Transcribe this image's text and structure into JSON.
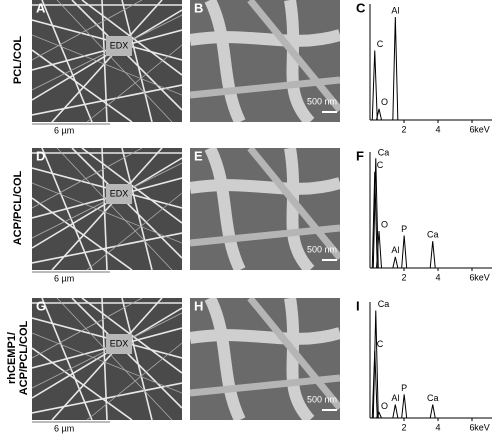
{
  "rows": [
    {
      "label": [
        "PCL/COL"
      ],
      "low_mag": {
        "letter": "A",
        "marker": "EDX",
        "scale": "6 µm"
      },
      "high_mag": {
        "letter": "B",
        "scale": "500 nm"
      },
      "spectrum": {
        "letter": "C",
        "xticks": [
          2,
          4,
          6
        ],
        "unit": "keV",
        "peaks": [
          {
            "label": "C",
            "kev": 0.28,
            "height": 62
          },
          {
            "label": "O",
            "kev": 0.53,
            "height": 10
          },
          {
            "label": "Al",
            "kev": 1.49,
            "height": 92
          }
        ]
      }
    },
    {
      "label": [
        "ACP/PCL/COL"
      ],
      "low_mag": {
        "letter": "D",
        "marker": "EDX",
        "scale": "6 µm"
      },
      "high_mag": {
        "letter": "E",
        "scale": "500 nm"
      },
      "spectrum": {
        "letter": "F",
        "xticks": [
          2,
          4,
          6
        ],
        "unit": "keV",
        "peaks": [
          {
            "label": "Ca",
            "kev": 0.34,
            "height": 98
          },
          {
            "label": "C",
            "kev": 0.28,
            "height": 86
          },
          {
            "label": "O",
            "kev": 0.53,
            "height": 33
          },
          {
            "label": "Al",
            "kev": 1.49,
            "height": 10
          },
          {
            "label": "P",
            "kev": 2.01,
            "height": 29
          },
          {
            "label": "Ca",
            "kev": 3.69,
            "height": 24
          }
        ]
      }
    },
    {
      "label": [
        "rhCEMP1/",
        "ACP/PCL/COL"
      ],
      "low_mag": {
        "letter": "G",
        "marker": "EDX",
        "scale": "6 µm"
      },
      "high_mag": {
        "letter": "H",
        "scale": "500 nm"
      },
      "spectrum": {
        "letter": "I",
        "xticks": [
          2,
          4,
          6
        ],
        "unit": "keV",
        "peaks": [
          {
            "label": "Ca",
            "kev": 0.34,
            "height": 96
          },
          {
            "label": "C",
            "kev": 0.28,
            "height": 60
          },
          {
            "label": "O",
            "kev": 0.53,
            "height": 5
          },
          {
            "label": "Al",
            "kev": 1.49,
            "height": 12
          },
          {
            "label": "P",
            "kev": 2.01,
            "height": 21
          },
          {
            "label": "Ca",
            "kev": 3.69,
            "height": 12
          }
        ]
      }
    }
  ]
}
